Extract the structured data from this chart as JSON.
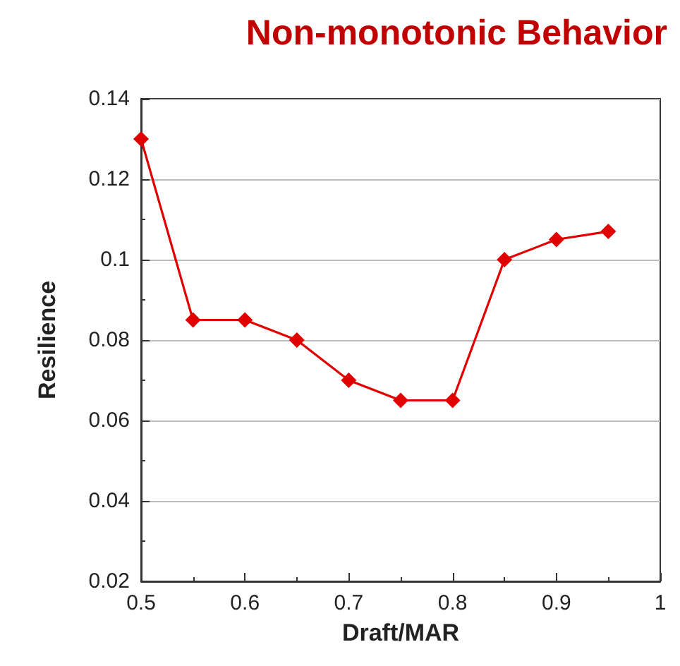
{
  "chart_data": {
    "type": "line",
    "title": "Non-monotonic Behavior",
    "xlabel": "Draft/MAR",
    "ylabel": "Resilience",
    "x": [
      0.5,
      0.55,
      0.6,
      0.65,
      0.7,
      0.75,
      0.8,
      0.85,
      0.9,
      0.95
    ],
    "series": [
      {
        "color": "#e00000",
        "values": [
          0.13,
          0.085,
          0.085,
          0.08,
          0.07,
          0.065,
          0.065,
          0.1,
          0.105,
          0.107
        ]
      }
    ],
    "xlim": [
      0.5,
      1
    ],
    "xticks": [
      0.5,
      0.6,
      0.7,
      0.8,
      0.9,
      1
    ],
    "ylim": [
      0.02,
      0.14
    ],
    "yticks": [
      0.02,
      0.04,
      0.06,
      0.08,
      0.1,
      0.12,
      0.14
    ],
    "grid": "y",
    "marker": "diamond",
    "line_style": "solid"
  }
}
